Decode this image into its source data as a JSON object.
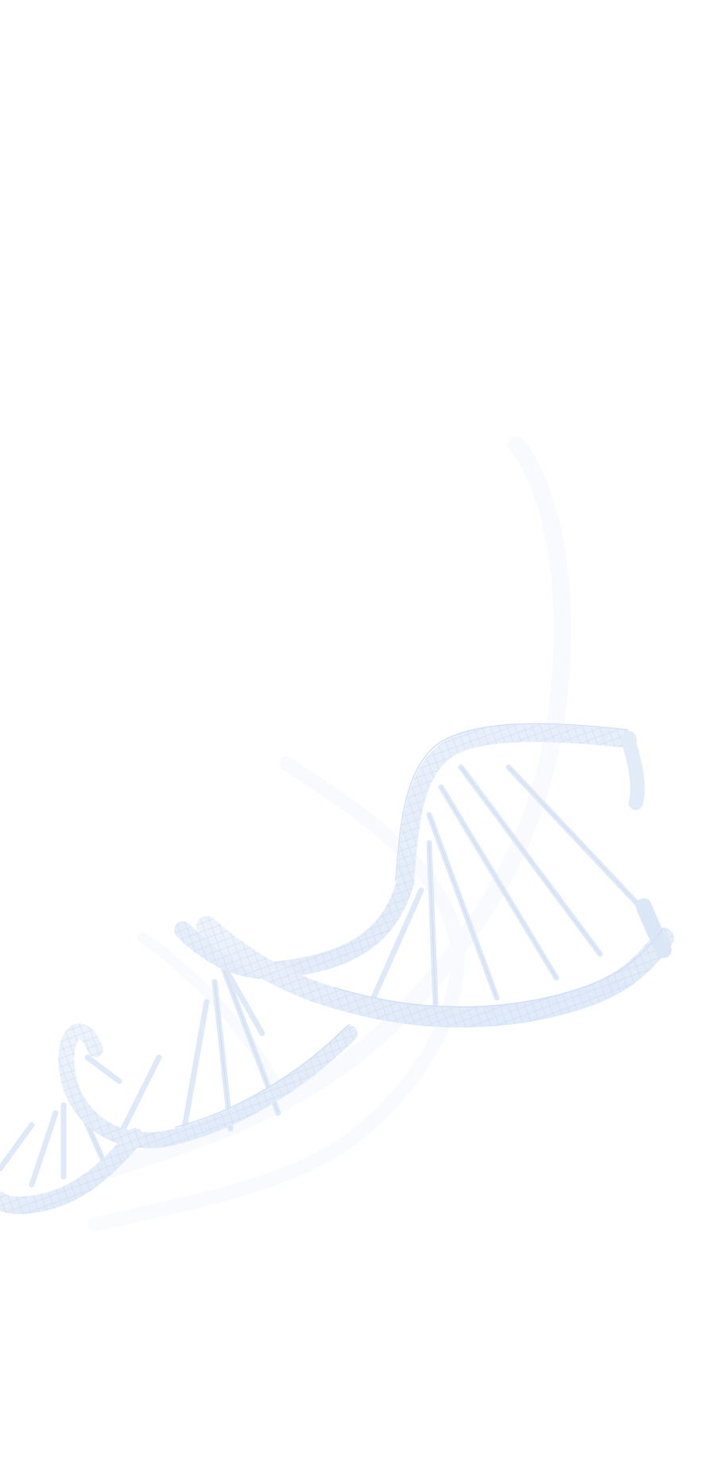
{
  "background": {
    "color": "#ffffff",
    "illustration": "dna-double-helix",
    "illustration_colors": {
      "strand": "#e4edf9",
      "strand_edge": "#d2e0f4",
      "mesh": "#c9daf2",
      "shadow": "#f3f6fb"
    }
  }
}
